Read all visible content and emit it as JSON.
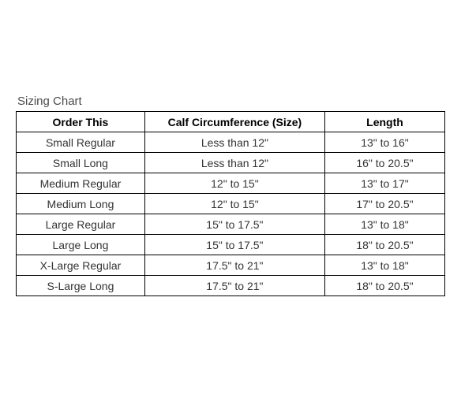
{
  "title": "Sizing Chart",
  "table": {
    "type": "table",
    "columns": [
      {
        "label": "Order This",
        "width_pct": 30
      },
      {
        "label": "Calf Circumference (Size)",
        "width_pct": 42
      },
      {
        "label": "Length",
        "width_pct": 28
      }
    ],
    "rows": [
      [
        "Small Regular",
        "Less than 12\"",
        "13\" to 16\""
      ],
      [
        "Small Long",
        "Less than 12\"",
        "16\" to 20.5\""
      ],
      [
        "Medium Regular",
        "12\" to 15\"",
        "13\" to 17\""
      ],
      [
        "Medium Long",
        "12\" to 15\"",
        "17\" to 20.5\""
      ],
      [
        "Large Regular",
        "15\" to 17.5\"",
        "13\" to 18\""
      ],
      [
        "Large Long",
        "15\" to 17.5\"",
        "18\" to 20.5\""
      ],
      [
        "X-Large Regular",
        "17.5\" to 21\"",
        "13\" to 18\""
      ],
      [
        "S-Large Long",
        "17.5\" to 21\"",
        "18\" to 20.5\""
      ]
    ],
    "border_color": "#000000",
    "background_color": "#ffffff",
    "header_font_weight": "bold",
    "cell_fontsize": 14,
    "header_fontsize": 14,
    "text_color": "#333333",
    "header_text_color": "#000000",
    "title_color": "#4a4a4a",
    "title_fontsize": 15
  }
}
